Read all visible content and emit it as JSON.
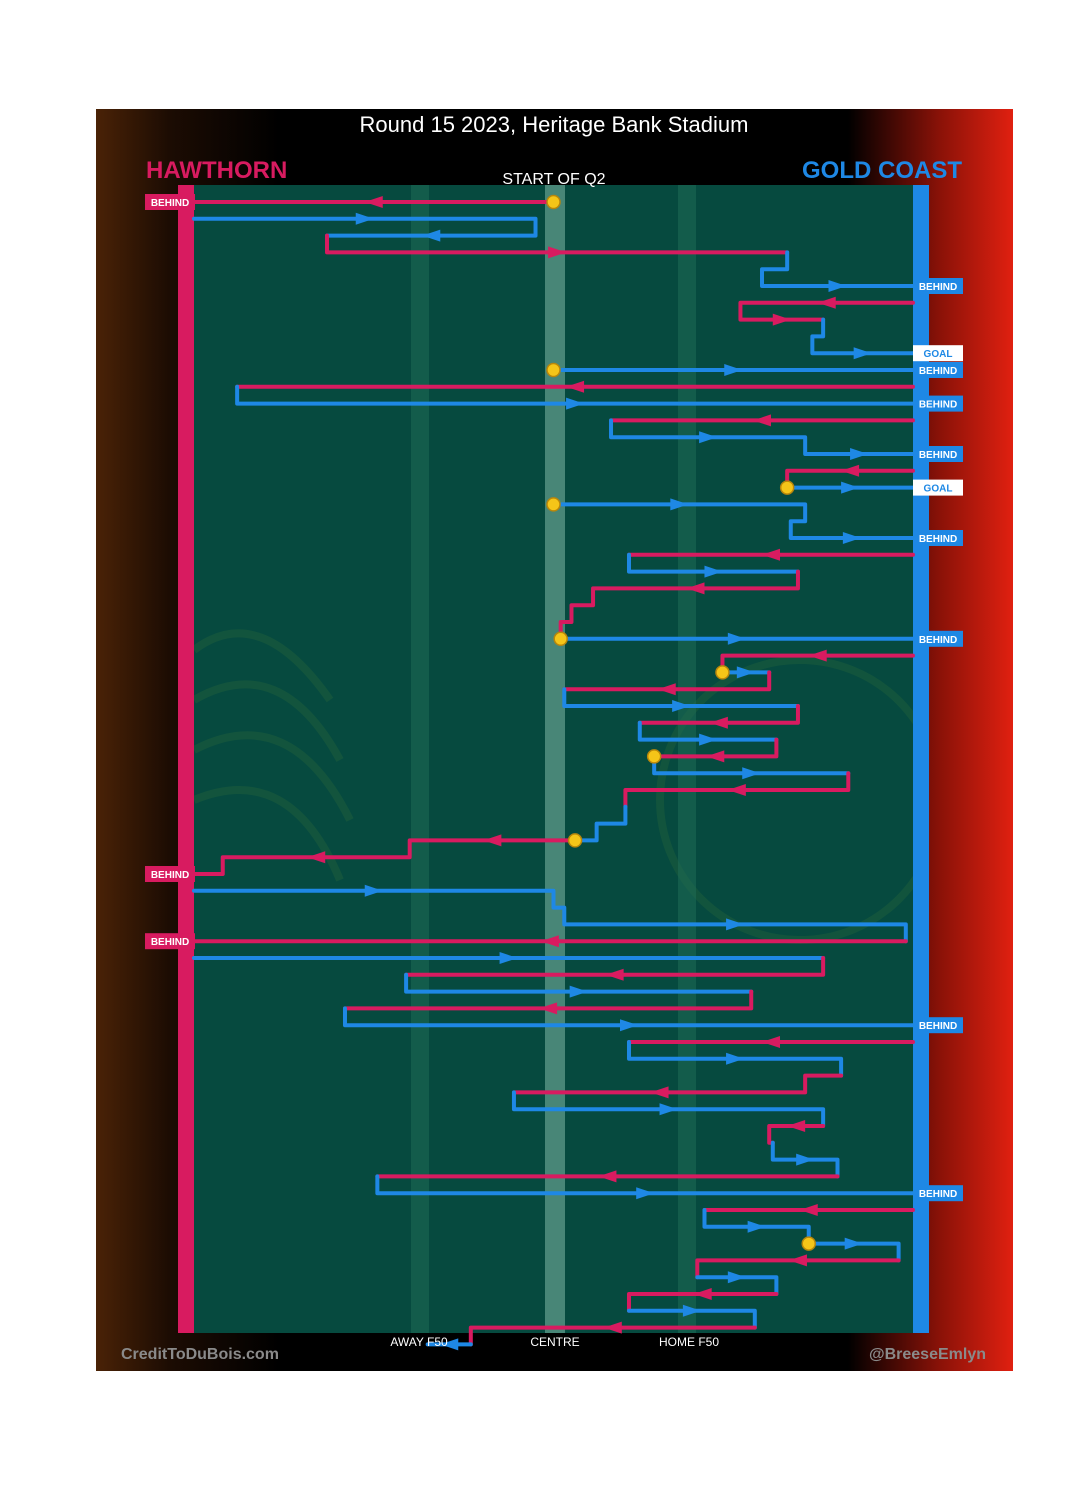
{
  "header": {
    "title": "Round 15 2023, Heritage Bank Stadium",
    "quarter_label": "START OF Q2"
  },
  "teams": {
    "left": {
      "name": "HAWTHORN",
      "color": "#d81b60"
    },
    "right": {
      "name": "GOLD COAST",
      "color": "#1e88e5"
    }
  },
  "footer": {
    "credit_left": "CreditToDuBois.com",
    "credit_right": "@BreeseEmlyn"
  },
  "colors": {
    "ground": "#064a3f",
    "gold": "#f5c518"
  },
  "chart_data": {
    "type": "flow",
    "x_tick_labels": [
      "AWAY F50",
      "CENTRE",
      "HOME F50"
    ],
    "chains": [
      {
        "team": "left",
        "path": [
          [
            0.0,
            0.0
          ],
          [
            -1.0,
            0.0
          ]
        ],
        "start": "gold",
        "end": "BEHIND"
      },
      {
        "team": "right",
        "path": [
          [
            -1.0,
            1.0
          ],
          [
            -0.05,
            1.0
          ],
          [
            -0.05,
            2.0
          ],
          [
            -0.63,
            2.0
          ]
        ]
      },
      {
        "team": "left",
        "path": [
          [
            -0.63,
            2.0
          ],
          [
            -0.63,
            3.0
          ],
          [
            0.65,
            3.0
          ]
        ]
      },
      {
        "team": "right",
        "path": [
          [
            0.65,
            3.0
          ],
          [
            0.65,
            4.0
          ],
          [
            0.58,
            4.0
          ],
          [
            0.58,
            5.0
          ],
          [
            1.0,
            5.0
          ]
        ],
        "end": "BEHIND"
      },
      {
        "team": "left",
        "path": [
          [
            1.0,
            6.0
          ],
          [
            0.52,
            6.0
          ],
          [
            0.52,
            7.0
          ],
          [
            0.75,
            7.0
          ]
        ]
      },
      {
        "team": "right",
        "path": [
          [
            0.75,
            7.0
          ],
          [
            0.75,
            8.0
          ],
          [
            0.72,
            8.0
          ],
          [
            0.72,
            9.0
          ],
          [
            1.0,
            9.0
          ]
        ],
        "end": "GOAL"
      },
      {
        "team": "right",
        "path": [
          [
            0.0,
            10.0
          ],
          [
            1.0,
            10.0
          ]
        ],
        "start": "gold",
        "end": "BEHIND"
      },
      {
        "team": "left",
        "path": [
          [
            1.0,
            11.0
          ],
          [
            -0.88,
            11.0
          ]
        ]
      },
      {
        "team": "right",
        "path": [
          [
            -0.88,
            11.0
          ],
          [
            -0.88,
            12.0
          ],
          [
            1.0,
            12.0
          ]
        ],
        "end": "BEHIND"
      },
      {
        "team": "left",
        "path": [
          [
            1.0,
            13.0
          ],
          [
            0.16,
            13.0
          ]
        ]
      },
      {
        "team": "right",
        "path": [
          [
            0.16,
            13.0
          ],
          [
            0.16,
            14.0
          ],
          [
            0.7,
            14.0
          ],
          [
            0.7,
            15.0
          ],
          [
            1.0,
            15.0
          ]
        ],
        "start_at": [
          0.7,
          15.0
        ],
        "end": "BEHIND"
      },
      {
        "team": "left",
        "path": [
          [
            1.0,
            16.0
          ],
          [
            0.65,
            16.0
          ],
          [
            0.65,
            17.0
          ]
        ],
        "end_gold": true
      },
      {
        "team": "right",
        "path": [
          [
            0.65,
            17.0
          ],
          [
            1.0,
            17.0
          ]
        ],
        "end": "GOAL"
      },
      {
        "team": "right",
        "path": [
          [
            0.0,
            18.0
          ],
          [
            0.7,
            18.0
          ],
          [
            0.7,
            19.0
          ],
          [
            0.66,
            19.0
          ],
          [
            0.66,
            20.0
          ],
          [
            1.0,
            20.0
          ]
        ],
        "start": "gold",
        "end": "BEHIND"
      },
      {
        "team": "left",
        "path": [
          [
            1.0,
            21.0
          ],
          [
            0.21,
            21.0
          ]
        ]
      },
      {
        "team": "right",
        "path": [
          [
            0.21,
            21.0
          ],
          [
            0.21,
            22.0
          ],
          [
            0.68,
            22.0
          ]
        ]
      },
      {
        "team": "left",
        "path": [
          [
            0.68,
            22.0
          ],
          [
            0.68,
            23.0
          ],
          [
            0.11,
            23.0
          ],
          [
            0.11,
            24.0
          ],
          [
            0.05,
            24.0
          ],
          [
            0.05,
            25.0
          ],
          [
            0.02,
            25.0
          ],
          [
            0.02,
            26.0
          ]
        ]
      },
      {
        "team": "right",
        "path": [
          [
            0.02,
            26.0
          ],
          [
            1.0,
            26.0
          ]
        ],
        "start": "gold",
        "end": "BEHIND"
      },
      {
        "team": "left",
        "path": [
          [
            1.0,
            27.0
          ],
          [
            0.47,
            27.0
          ],
          [
            0.47,
            28.0
          ]
        ],
        "end_gold": true
      },
      {
        "team": "right",
        "path": [
          [
            0.47,
            28.0
          ],
          [
            0.6,
            28.0
          ]
        ]
      },
      {
        "team": "left",
        "path": [
          [
            0.6,
            28.0
          ],
          [
            0.6,
            29.0
          ],
          [
            0.03,
            29.0
          ]
        ]
      },
      {
        "team": "right",
        "path": [
          [
            0.03,
            29.0
          ],
          [
            0.03,
            30.0
          ],
          [
            0.68,
            30.0
          ]
        ]
      },
      {
        "team": "left",
        "path": [
          [
            0.68,
            30.0
          ],
          [
            0.68,
            31.0
          ],
          [
            0.24,
            31.0
          ]
        ]
      },
      {
        "team": "right",
        "path": [
          [
            0.24,
            31.0
          ],
          [
            0.24,
            32.0
          ],
          [
            0.62,
            32.0
          ]
        ]
      },
      {
        "team": "left",
        "path": [
          [
            0.62,
            32.0
          ],
          [
            0.62,
            33.0
          ],
          [
            0.28,
            33.0
          ]
        ]
      },
      {
        "team": "right",
        "path": [
          [
            0.28,
            33.0
          ],
          [
            0.28,
            34.0
          ],
          [
            0.82,
            34.0
          ]
        ],
        "start": "gold"
      },
      {
        "team": "left",
        "path": [
          [
            0.82,
            34.0
          ],
          [
            0.82,
            35.0
          ],
          [
            0.2,
            35.0
          ],
          [
            0.2,
            36.0
          ]
        ]
      },
      {
        "team": "right",
        "path": [
          [
            0.2,
            36.0
          ],
          [
            0.2,
            37.0
          ],
          [
            0.12,
            37.0
          ],
          [
            0.12,
            38.0
          ],
          [
            0.06,
            38.0
          ]
        ]
      },
      {
        "team": "left",
        "path": [
          [
            0.06,
            38.0
          ],
          [
            -0.4,
            38.0
          ],
          [
            -0.4,
            39.0
          ],
          [
            -0.92,
            39.0
          ],
          [
            -0.92,
            40.0
          ],
          [
            -1.0,
            40.0
          ]
        ],
        "start": "gold",
        "end": "BEHIND"
      },
      {
        "team": "right",
        "path": [
          [
            -1.0,
            41.0
          ],
          [
            0.0,
            41.0
          ],
          [
            0.0,
            42.0
          ],
          [
            0.03,
            42.0
          ],
          [
            0.03,
            43.0
          ],
          [
            0.98,
            43.0
          ],
          [
            0.98,
            44.0
          ]
        ]
      },
      {
        "team": "left",
        "path": [
          [
            0.98,
            44.0
          ],
          [
            -1.0,
            44.0
          ]
        ],
        "end": "BEHIND"
      },
      {
        "team": "right",
        "path": [
          [
            -1.0,
            45.0
          ],
          [
            0.75,
            45.0
          ]
        ]
      },
      {
        "team": "left",
        "path": [
          [
            0.75,
            45.0
          ],
          [
            0.75,
            46.0
          ],
          [
            -0.41,
            46.0
          ]
        ]
      },
      {
        "team": "right",
        "path": [
          [
            -0.41,
            46.0
          ],
          [
            -0.41,
            47.0
          ],
          [
            0.55,
            47.0
          ]
        ]
      },
      {
        "team": "left",
        "path": [
          [
            0.55,
            47.0
          ],
          [
            0.55,
            48.0
          ],
          [
            -0.58,
            48.0
          ]
        ]
      },
      {
        "team": "right",
        "path": [
          [
            -0.58,
            48.0
          ],
          [
            -0.58,
            49.0
          ],
          [
            1.0,
            49.0
          ]
        ],
        "end": "BEHIND"
      },
      {
        "team": "left",
        "path": [
          [
            1.0,
            50.0
          ],
          [
            0.21,
            50.0
          ]
        ]
      },
      {
        "team": "right",
        "path": [
          [
            0.21,
            50.0
          ],
          [
            0.21,
            51.0
          ],
          [
            0.8,
            51.0
          ],
          [
            0.8,
            52.0
          ]
        ]
      },
      {
        "team": "left",
        "path": [
          [
            0.8,
            52.0
          ],
          [
            0.7,
            52.0
          ],
          [
            0.7,
            53.0
          ],
          [
            -0.11,
            53.0
          ]
        ]
      },
      {
        "team": "right",
        "path": [
          [
            -0.11,
            53.0
          ],
          [
            -0.11,
            54.0
          ],
          [
            0.75,
            54.0
          ],
          [
            0.75,
            55.0
          ]
        ]
      },
      {
        "team": "left",
        "path": [
          [
            0.75,
            55.0
          ],
          [
            0.6,
            55.0
          ],
          [
            0.6,
            56.0
          ],
          [
            0.61,
            56.0
          ]
        ]
      },
      {
        "team": "right",
        "path": [
          [
            0.61,
            56.0
          ],
          [
            0.61,
            57.0
          ],
          [
            0.79,
            57.0
          ],
          [
            0.79,
            58.0
          ]
        ]
      },
      {
        "team": "left",
        "path": [
          [
            0.79,
            58.0
          ],
          [
            -0.49,
            58.0
          ]
        ]
      },
      {
        "team": "right",
        "path": [
          [
            -0.49,
            58.0
          ],
          [
            -0.49,
            59.0
          ],
          [
            1.0,
            59.0
          ]
        ],
        "end": "BEHIND"
      },
      {
        "team": "left",
        "path": [
          [
            1.0,
            60.0
          ],
          [
            0.42,
            60.0
          ]
        ]
      },
      {
        "team": "right",
        "path": [
          [
            0.42,
            60.0
          ],
          [
            0.42,
            61.0
          ],
          [
            0.71,
            61.0
          ],
          [
            0.71,
            62.0
          ]
        ]
      },
      {
        "team": "right",
        "path": [
          [
            0.71,
            62.0
          ],
          [
            0.96,
            62.0
          ],
          [
            0.96,
            63.0
          ]
        ],
        "start": "gold"
      },
      {
        "team": "left",
        "path": [
          [
            0.96,
            63.0
          ],
          [
            0.4,
            63.0
          ],
          [
            0.4,
            64.0
          ]
        ]
      },
      {
        "team": "right",
        "path": [
          [
            0.4,
            64.0
          ],
          [
            0.62,
            64.0
          ],
          [
            0.62,
            65.0
          ]
        ]
      },
      {
        "team": "left",
        "path": [
          [
            0.62,
            65.0
          ],
          [
            0.21,
            65.0
          ],
          [
            0.21,
            66.0
          ]
        ]
      },
      {
        "team": "right",
        "path": [
          [
            0.21,
            66.0
          ],
          [
            0.56,
            66.0
          ],
          [
            0.56,
            67.0
          ]
        ]
      },
      {
        "team": "left",
        "path": [
          [
            0.56,
            67.0
          ],
          [
            -0.23,
            67.0
          ],
          [
            -0.23,
            68.0
          ]
        ]
      },
      {
        "team": "right",
        "path": [
          [
            -0.23,
            68.0
          ],
          [
            -0.35,
            68.0
          ]
        ]
      }
    ]
  }
}
